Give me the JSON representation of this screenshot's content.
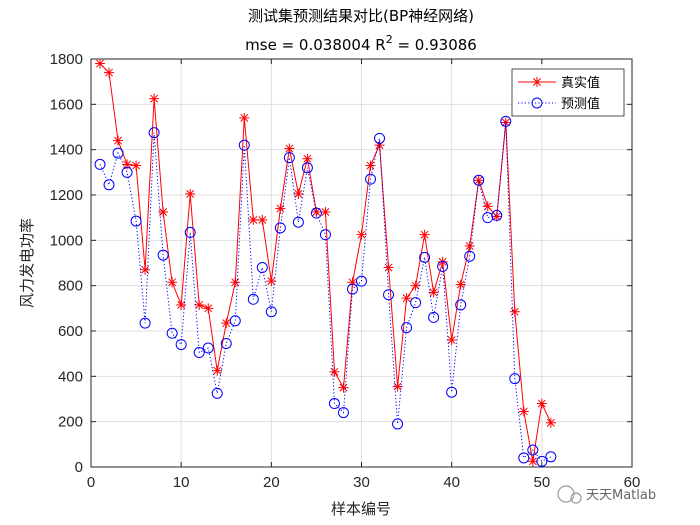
{
  "chart_data": {
    "type": "line",
    "title": "测试集预测结果对比(BP神经网络)",
    "subtitle_prefix": "mse = 0.038004 R",
    "subtitle_sup": "2",
    "subtitle_suffix": " = 0.93086",
    "xlabel": "样本编号",
    "ylabel": "风力发电功率",
    "xlim": [
      0,
      60
    ],
    "ylim": [
      0,
      1800
    ],
    "xticks": [
      0,
      10,
      20,
      30,
      40,
      50,
      60
    ],
    "yticks": [
      0,
      200,
      400,
      600,
      800,
      1000,
      1200,
      1400,
      1600,
      1800
    ],
    "grid": true,
    "legend_position": "top-right",
    "series": [
      {
        "name": "真实值",
        "color": "#ff0000",
        "marker": "star",
        "linestyle": "solid",
        "x": [
          1,
          2,
          3,
          4,
          5,
          6,
          7,
          8,
          9,
          10,
          11,
          12,
          13,
          14,
          15,
          16,
          17,
          18,
          19,
          20,
          21,
          22,
          23,
          24,
          25,
          26,
          27,
          28,
          29,
          30,
          31,
          32,
          33,
          34,
          35,
          36,
          37,
          38,
          39,
          40,
          41,
          42,
          43,
          44,
          45,
          46,
          47,
          48,
          49,
          50,
          51
        ],
        "values": [
          1780,
          1740,
          1440,
          1335,
          1330,
          870,
          1625,
          1125,
          815,
          715,
          1205,
          715,
          700,
          425,
          635,
          815,
          1540,
          1090,
          1090,
          820,
          1140,
          1405,
          1205,
          1360,
          1125,
          1125,
          420,
          350,
          815,
          1025,
          1330,
          1420,
          880,
          355,
          745,
          800,
          1025,
          770,
          905,
          560,
          805,
          975,
          1265,
          1150,
          1105,
          1520,
          685,
          245,
          25,
          280,
          195
        ]
      },
      {
        "name": "预测值",
        "color": "#0000ff",
        "marker": "circle",
        "linestyle": "dotted",
        "x": [
          1,
          2,
          3,
          4,
          5,
          6,
          7,
          8,
          9,
          10,
          11,
          12,
          13,
          14,
          15,
          16,
          17,
          18,
          19,
          20,
          21,
          22,
          23,
          24,
          25,
          26,
          27,
          28,
          29,
          30,
          31,
          32,
          33,
          34,
          35,
          36,
          37,
          38,
          39,
          40,
          41,
          42,
          43,
          44,
          45,
          46,
          47,
          48,
          49,
          50,
          51
        ],
        "values": [
          1335,
          1245,
          1385,
          1300,
          1085,
          635,
          1475,
          935,
          590,
          540,
          1035,
          505,
          525,
          325,
          545,
          645,
          1420,
          740,
          880,
          685,
          1055,
          1365,
          1080,
          1320,
          1120,
          1025,
          280,
          240,
          785,
          820,
          1270,
          1450,
          760,
          190,
          615,
          725,
          925,
          660,
          885,
          330,
          715,
          930,
          1265,
          1100,
          1110,
          1525,
          390,
          40,
          75,
          25,
          45
        ]
      }
    ],
    "watermark": "天天Matlab"
  }
}
